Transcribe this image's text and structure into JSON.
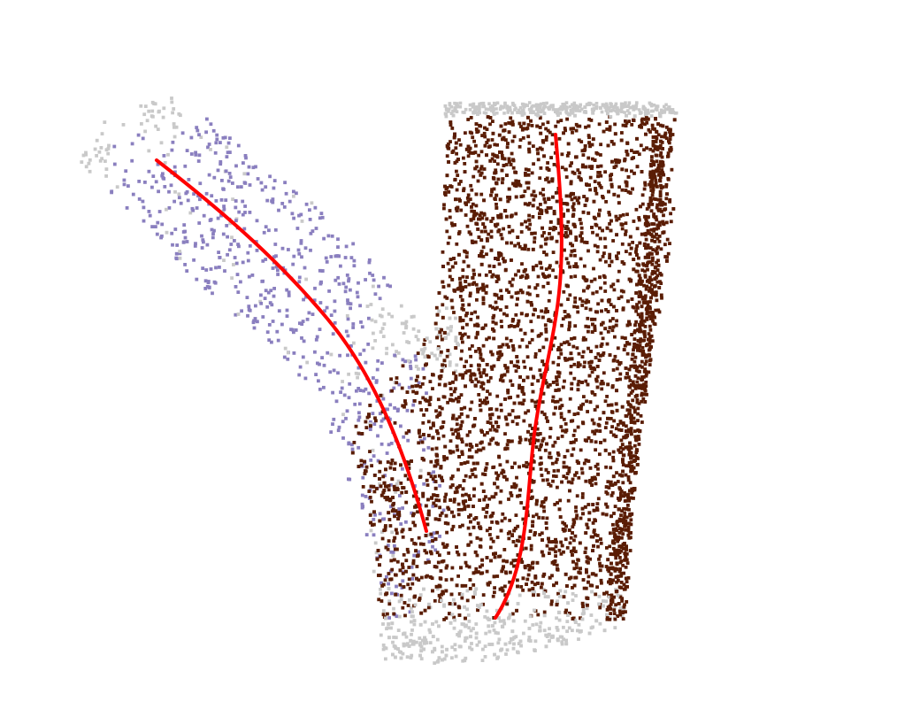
{
  "figure": {
    "colors": {
      "background": "#ffffff",
      "unassigned_points": "#c9c9c9",
      "branch_left_points": "#8a7fbf",
      "branch_right_points": "#5a1d05",
      "skeleton_curve": "#ff0000"
    },
    "segments": [
      {
        "name": "left-branch",
        "color_key": "branch_left_points"
      },
      {
        "name": "right-trunk",
        "color_key": "branch_right_points"
      },
      {
        "name": "unassigned-boundary",
        "color_key": "unassigned_points"
      }
    ],
    "skeleton_curves": [
      {
        "name": "left-branch-skeleton"
      },
      {
        "name": "right-trunk-skeleton"
      }
    ]
  }
}
